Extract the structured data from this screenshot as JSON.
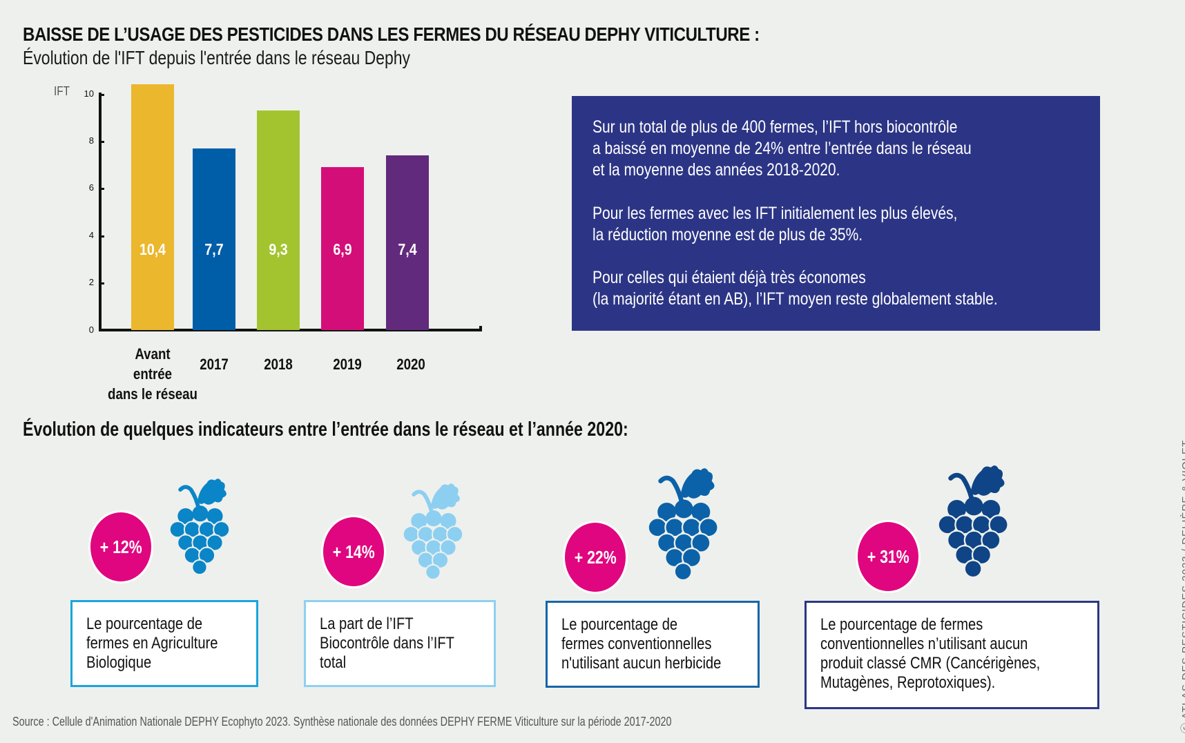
{
  "header": {
    "title": "BAISSE DE L’USAGE DES PESTICIDES DANS LES FERMES DU RÉSEAU DEPHY VITICULTURE :",
    "subtitle": "Évolution de l'IFT depuis l'entrée dans le réseau Dephy"
  },
  "chart_data": {
    "type": "bar",
    "title": "Évolution de l'IFT depuis l'entrée dans le réseau Dephy",
    "xlabel": "",
    "ylabel": "IFT",
    "ylim": [
      0,
      10
    ],
    "yticks": [
      "0",
      "2",
      "4",
      "6",
      "8",
      "10"
    ],
    "grid": false,
    "categories": [
      "Avant entrée dans le réseau",
      "2017",
      "2018",
      "2019",
      "2020"
    ],
    "values": [
      10.4,
      7.7,
      9.3,
      6.9,
      7.4
    ],
    "value_labels": [
      "10,4",
      "7,7",
      "9,3",
      "6,9",
      "7,4"
    ],
    "colors": [
      "#ebb72d",
      "#005ea8",
      "#a3c42f",
      "#d40e78",
      "#622a7c"
    ],
    "category_label_lines": [
      [
        "Avant",
        "entrée",
        "dans le réseau"
      ],
      [
        "2017"
      ],
      [
        "2018"
      ],
      [
        "2019"
      ],
      [
        "2020"
      ]
    ]
  },
  "infobox": {
    "background": "#2c3585",
    "paragraphs": [
      [
        "Sur un total de plus de 400 fermes, l’IFT hors biocontrôle",
        "a baissé en moyenne de 24% entre l’entrée dans le réseau",
        "et la moyenne des années 2018-2020."
      ],
      [
        "Pour les fermes avec les IFT initialement les plus élevés,",
        "la réduction moyenne est de plus de 35%."
      ],
      [
        "Pour celles qui étaient déjà très économes",
        "(la majorité étant en AB), l’IFT moyen reste globalement stable."
      ]
    ]
  },
  "indicators": {
    "title": "Évolution de quelques indicateurs entre l’entrée dans le réseau et l’année 2020:",
    "badge_color": "#e0067f",
    "items": [
      {
        "value": "+ 12%",
        "icon": "grape-icon",
        "icon_color": "#0a85c7",
        "border_color": "#1aa5dc",
        "lines": [
          "Le pourcentage de",
          "fermes en Agriculture",
          "Biologique"
        ]
      },
      {
        "value": "+ 14%",
        "icon": "grape-icon",
        "icon_color": "#8dcff1",
        "border_color": "#8fd0f0",
        "lines": [
          "La part de l’IFT",
          "Biocontrôle dans l’IFT",
          "total"
        ]
      },
      {
        "value": "+ 22%",
        "icon": "grape-icon",
        "icon_color": "#0c62a8",
        "border_color": "#1565a8",
        "lines": [
          "Le pourcentage de",
          "fermes conventionnelles",
          "n'utilisant aucun herbicide"
        ]
      },
      {
        "value": "+ 31%",
        "icon": "grape-icon",
        "icon_color": "#0f4486",
        "border_color": "#2c3585",
        "lines": [
          "Le pourcentage de fermes",
          "conventionnelles n’utilisant aucun",
          "produit classé CMR (Cancérigènes,",
          "Mutagènes, Reprotoxiques)."
        ]
      }
    ]
  },
  "footer": {
    "source": "Source : Cellule d'Animation Nationale DEPHY Ecophyto 2023. Synthèse nationale des données DEPHY FERME Viticulture sur la période 2017-2020",
    "credit": "ⓒ ATLAS DES PESTICIDES 2023 / DELIÈRE & VIOLET"
  }
}
